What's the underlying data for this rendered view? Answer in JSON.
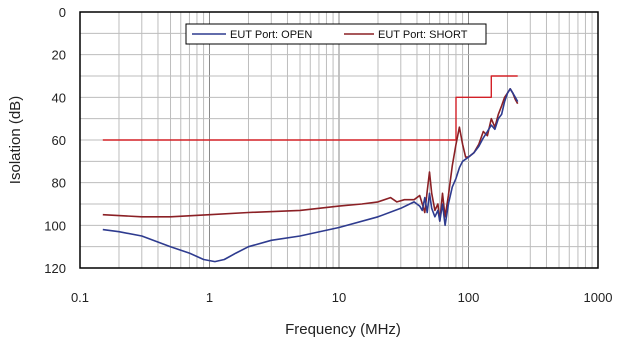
{
  "chart_data": {
    "type": "line",
    "xlabel": "Frequency (MHz)",
    "ylabel": "Isolation (dB)",
    "x_scale": "log",
    "xlim": [
      0.1,
      1000
    ],
    "ylim": [
      120,
      0
    ],
    "y_inverted": true,
    "x_ticks": [
      "0.1",
      "1",
      "10",
      "100",
      "1000"
    ],
    "y_ticks": [
      "0",
      "20",
      "40",
      "60",
      "80",
      "100",
      "120"
    ],
    "grid": true,
    "legend_position": "top-center",
    "series": [
      {
        "name": "EUT Port: OPEN",
        "color": "#2e3b8f",
        "x": [
          0.15,
          0.2,
          0.3,
          0.5,
          0.7,
          0.9,
          1.1,
          1.3,
          1.6,
          2,
          3,
          5,
          10,
          20,
          30,
          38,
          42,
          44,
          46,
          48,
          50,
          52,
          55,
          58,
          60,
          63,
          66,
          70,
          75,
          80,
          85,
          90,
          95,
          100,
          110,
          120,
          130,
          140,
          150,
          160,
          170,
          180,
          190,
          200,
          210,
          220,
          230,
          240
        ],
        "y": [
          102,
          103,
          105,
          110,
          113,
          116,
          117,
          116,
          113,
          110,
          107,
          105,
          101,
          96,
          92,
          89,
          91,
          93,
          87,
          94,
          85,
          92,
          96,
          93,
          98,
          90,
          100,
          90,
          82,
          78,
          73,
          70,
          69,
          68,
          66,
          63,
          59,
          56,
          53,
          55,
          50,
          48,
          42,
          38,
          36,
          38,
          40,
          42
        ]
      },
      {
        "name": "EUT Port: SHORT",
        "color": "#8b2025",
        "x": [
          0.15,
          0.3,
          0.5,
          1,
          2,
          5,
          10,
          15,
          20,
          25,
          28,
          32,
          38,
          42,
          44,
          46,
          48,
          50,
          52,
          55,
          58,
          60,
          63,
          66,
          70,
          75,
          80,
          85,
          90,
          95,
          100,
          110,
          120,
          130,
          140,
          150,
          160,
          170,
          180,
          190,
          200,
          210,
          220,
          230,
          240
        ],
        "y": [
          95,
          96,
          96,
          95,
          94,
          93,
          91,
          90,
          89,
          87,
          89,
          88,
          88,
          86,
          90,
          94,
          84,
          75,
          85,
          93,
          90,
          98,
          85,
          96,
          86,
          72,
          62,
          54,
          62,
          68,
          68,
          66,
          62,
          56,
          58,
          50,
          54,
          48,
          44,
          40,
          38,
          36,
          38,
          41,
          43
        ]
      },
      {
        "name": "",
        "color": "#d32027",
        "step": true,
        "x": [
          0.15,
          80,
          80,
          150,
          150,
          240
        ],
        "y": [
          60,
          60,
          40,
          40,
          30,
          30
        ]
      }
    ]
  }
}
